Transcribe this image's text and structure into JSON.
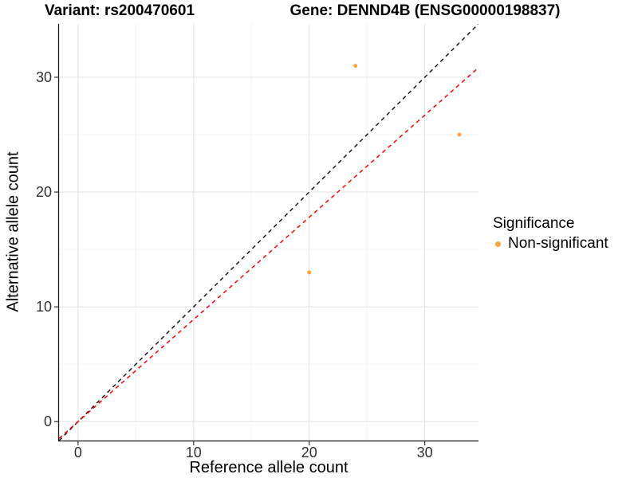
{
  "titles": {
    "left": "Variant: rs200470601",
    "right": "Gene: DENND4B (ENSG00000198837)"
  },
  "chart_data": {
    "type": "scatter",
    "xlabel": "Reference allele count",
    "ylabel": "Alternative allele count",
    "xlim": [
      -1.65,
      34.65
    ],
    "ylim": [
      -1.65,
      34.65
    ],
    "x_ticks": [
      0,
      10,
      20,
      30
    ],
    "y_ticks": [
      0,
      10,
      20,
      30
    ],
    "x_minor_ticks": [
      5,
      15,
      25
    ],
    "y_minor_ticks": [
      5,
      15,
      25
    ],
    "grid": "major+minor",
    "series": [
      {
        "name": "Non-significant",
        "color": "#FAA43C",
        "points": [
          [
            24,
            31
          ],
          [
            33,
            25
          ],
          [
            20,
            13
          ]
        ]
      }
    ],
    "lines": [
      {
        "name": "identity-line",
        "slope": 1.0,
        "intercept": 0,
        "color": "#1a1a1a",
        "style": "dashed"
      },
      {
        "name": "fit-line",
        "slope": 0.89,
        "intercept": 0,
        "color": "#FF0000",
        "style": "dashed"
      }
    ],
    "legend": {
      "title": "Significance",
      "position": "right",
      "entries": [
        {
          "label": "Non-significant",
          "color": "#FAA43C"
        }
      ]
    },
    "colors": {
      "major_grid": "#e5e5e5",
      "minor_grid": "#f0f0f0",
      "axis_line": "#1a1a1a",
      "tick": "#333333",
      "tick_label": "#303030"
    }
  }
}
